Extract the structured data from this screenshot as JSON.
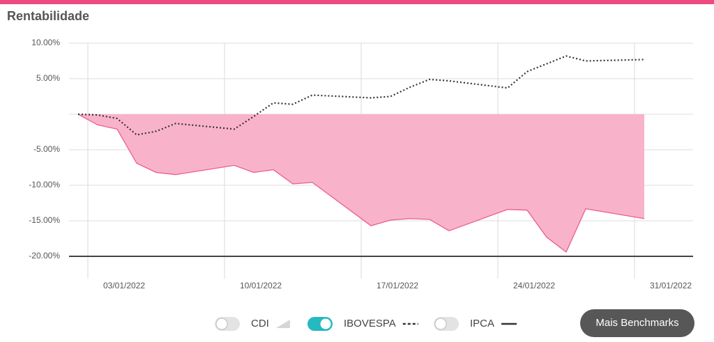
{
  "header": {
    "title": "Rentabilidade"
  },
  "button": {
    "label": "Mais Benchmarks"
  },
  "chart_data": {
    "type": "line",
    "x": [
      "02/01/2022",
      "03/01/2022",
      "04/01/2022",
      "05/01/2022",
      "06/01/2022",
      "07/01/2022",
      "10/01/2022",
      "11/01/2022",
      "12/01/2022",
      "13/01/2022",
      "14/01/2022",
      "17/01/2022",
      "18/01/2022",
      "19/01/2022",
      "20/01/2022",
      "21/01/2022",
      "24/01/2022",
      "25/01/2022",
      "26/01/2022",
      "27/01/2022",
      "28/01/2022",
      "31/01/2022"
    ],
    "series": [
      {
        "style": "area",
        "color": "#ee5a8f",
        "fill": "#f8b3cb",
        "values": [
          0,
          -1.5,
          -2.1,
          -6.9,
          -8.2,
          -8.5,
          -7.2,
          -8.2,
          -7.8,
          -9.8,
          -9.6,
          -15.7,
          -14.9,
          -14.7,
          -14.8,
          -16.4,
          -13.4,
          -13.5,
          -17.3,
          -19.4,
          -13.3,
          -14.7
        ]
      },
      {
        "style": "dotted",
        "color": "#333333",
        "values": [
          0,
          -0.1,
          -0.6,
          -2.9,
          -2.4,
          -1.3,
          -2.1,
          -0.3,
          1.6,
          1.4,
          2.7,
          2.3,
          2.5,
          3.8,
          4.9,
          4.7,
          3.7,
          6.0,
          7.1,
          8.2,
          7.5,
          7.7
        ]
      }
    ],
    "ylim": [
      -20,
      10
    ],
    "yticks": [
      {
        "value": 10,
        "label": "10.00%"
      },
      {
        "value": 5,
        "label": "5.00%"
      },
      {
        "value": 0
      },
      {
        "value": -5,
        "label": "-5.00%"
      },
      {
        "value": -10,
        "label": "-10.00%"
      },
      {
        "value": -15,
        "label": "-15.00%"
      },
      {
        "value": -20,
        "label": "-20.00%"
      }
    ],
    "xticks": [
      "03/01/2022",
      "10/01/2022",
      "17/01/2022",
      "24/01/2022",
      "31/01/2022"
    ],
    "grid": true,
    "benchmarks": [
      {
        "name": "CDI",
        "on": false,
        "icon": "area"
      },
      {
        "name": "IBOVESPA",
        "on": true,
        "icon": "dotted"
      },
      {
        "name": "IPCA",
        "on": false,
        "icon": "line"
      }
    ]
  }
}
